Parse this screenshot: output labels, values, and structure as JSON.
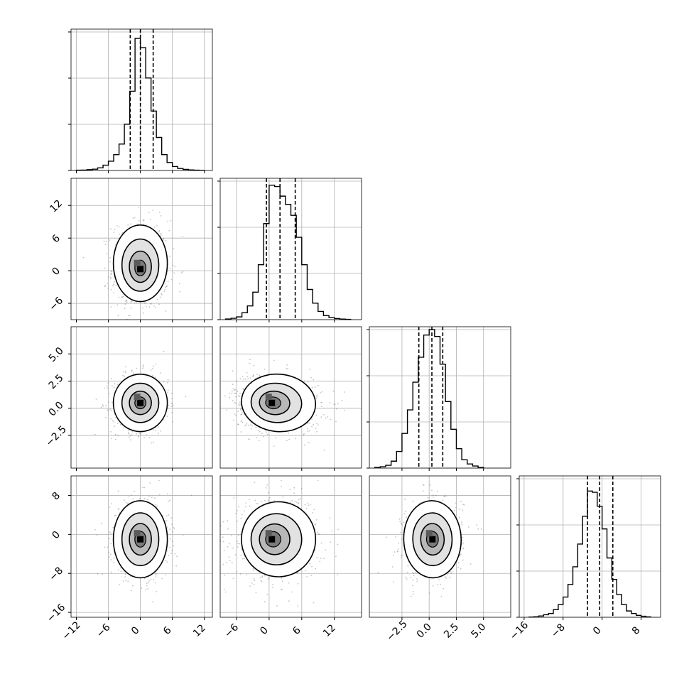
{
  "chart_data": {
    "type": "corner",
    "n_params": 4,
    "xlabel": "",
    "ylabel": "",
    "grid": true,
    "quantiles": [
      0.16,
      0.5,
      0.84
    ],
    "params": [
      {
        "range": [
          -13,
          13.5
        ],
        "ticks": [
          -12,
          -6,
          0,
          6,
          12
        ],
        "tick_labels": [
          "−12",
          "−6",
          "0",
          "6",
          "12"
        ],
        "hist_bins": [
          -11.5,
          -10.5,
          -9.5,
          -8.5,
          -7.5,
          -6.5,
          -5.5,
          -4.5,
          -3.5,
          -2.5,
          -1.5,
          -0.5,
          0.5,
          1.5,
          2.5,
          3.5,
          4.5,
          5.5,
          6.5,
          7.5,
          8.5,
          9.5,
          10.5,
          11.5
        ],
        "hist_values": [
          0.2,
          0.3,
          0.6,
          1,
          2,
          4,
          7,
          12,
          20,
          35,
          60,
          100,
          93,
          70,
          45,
          25,
          12,
          6,
          3,
          1.5,
          0.8,
          0.4,
          0.2,
          0.1
        ],
        "hist_max": 107,
        "quantile_values": [
          -1.9,
          0.0,
          2.4
        ]
      },
      {
        "range": [
          -9,
          17
        ],
        "ticks": [
          -6,
          0,
          6,
          12
        ],
        "tick_labels": [
          "−6",
          "0",
          "6",
          "12"
        ],
        "hist_bins": [
          -7.5,
          -6.5,
          -5.5,
          -4.5,
          -3.5,
          -2.5,
          -1.5,
          -0.5,
          0.5,
          1.5,
          2.5,
          3.5,
          4.5,
          5.5,
          6.5,
          7.5,
          8.5,
          9.5,
          10.5,
          11.5,
          12.5,
          13.5,
          14.5
        ],
        "hist_values": [
          0.5,
          1,
          2,
          5,
          10,
          20,
          40,
          70,
          98,
          97,
          90,
          84,
          76,
          60,
          40,
          22,
          12,
          6,
          3,
          1.5,
          0.8,
          0.4,
          0.2
        ],
        "hist_max": 103,
        "quantile_values": [
          -0.5,
          2.0,
          4.8
        ]
      },
      {
        "range": [
          -5.5,
          7.5
        ],
        "ticks": [
          -2.5,
          0.0,
          2.5,
          5.0
        ],
        "tick_labels": [
          "−2.5",
          "0.0",
          "2.5",
          "5.0"
        ],
        "hist_bins": [
          -4.75,
          -4.25,
          -3.75,
          -3.25,
          -2.75,
          -2.25,
          -1.75,
          -1.25,
          -0.75,
          -0.25,
          0.25,
          0.75,
          1.25,
          1.75,
          2.25,
          2.75,
          3.25,
          3.75,
          4.25,
          4.75
        ],
        "hist_values": [
          0.5,
          1,
          2,
          5,
          12,
          25,
          42,
          62,
          80,
          96,
          100,
          95,
          75,
          48,
          28,
          14,
          6,
          3,
          1.5,
          0.5
        ],
        "hist_max": 102,
        "quantile_values": [
          -0.95,
          0.25,
          1.25
        ]
      },
      {
        "range": [
          -17,
          12
        ],
        "ticks": [
          -16,
          -8,
          0,
          8
        ],
        "tick_labels": [
          "−16",
          "−8",
          "0",
          "8"
        ],
        "hist_bins": [
          -14.5,
          -13.5,
          -12.5,
          -11.5,
          -10.5,
          -9.5,
          -8.5,
          -7.5,
          -6.5,
          -5.5,
          -4.5,
          -3.5,
          -2.5,
          -1.5,
          -0.5,
          0.5,
          1.5,
          2.5,
          3.5,
          4.5,
          5.5,
          6.5,
          7.5,
          8.5,
          9.5
        ],
        "hist_values": [
          0.2,
          0.4,
          1,
          2,
          3,
          6,
          10,
          16,
          26,
          40,
          58,
          80,
          100,
          99,
          88,
          70,
          47,
          30,
          18,
          10,
          5,
          3,
          1.5,
          0.8,
          0.3
        ],
        "hist_max": 112,
        "quantile_values": [
          -3.0,
          -0.5,
          2.2
        ]
      }
    ],
    "pairs": [
      {
        "row": 1,
        "col": 0,
        "peak": [
          0.0,
          0.3
        ],
        "sigma": [
          2.3,
          3.2
        ],
        "rho": 0.0,
        "skew_y": 1.3,
        "skew_x": 0
      },
      {
        "row": 2,
        "col": 0,
        "peak": [
          0.0,
          0.5
        ],
        "sigma": [
          2.3,
          1.2
        ],
        "rho": 0.0,
        "skew_y": 0,
        "skew_x": 0
      },
      {
        "row": 2,
        "col": 1,
        "peak": [
          0.5,
          0.5
        ],
        "sigma": [
          3.1,
          1.2
        ],
        "rho": -0.15,
        "skew_y": 0,
        "skew_x": 1.3
      },
      {
        "row": 3,
        "col": 0,
        "peak": [
          0.0,
          -1.0
        ],
        "sigma": [
          2.3,
          3.6
        ],
        "rho": 0.0,
        "skew_y": 0,
        "skew_x": 0
      },
      {
        "row": 3,
        "col": 1,
        "peak": [
          0.5,
          -1.0
        ],
        "sigma": [
          3.1,
          3.5
        ],
        "rho": 0.1,
        "skew_y": 0,
        "skew_x": 1.2
      },
      {
        "row": 3,
        "col": 2,
        "peak": [
          0.3,
          -1.0
        ],
        "sigma": [
          1.2,
          3.6
        ],
        "rho": 0.05,
        "skew_y": 0,
        "skew_x": 0
      }
    ]
  }
}
